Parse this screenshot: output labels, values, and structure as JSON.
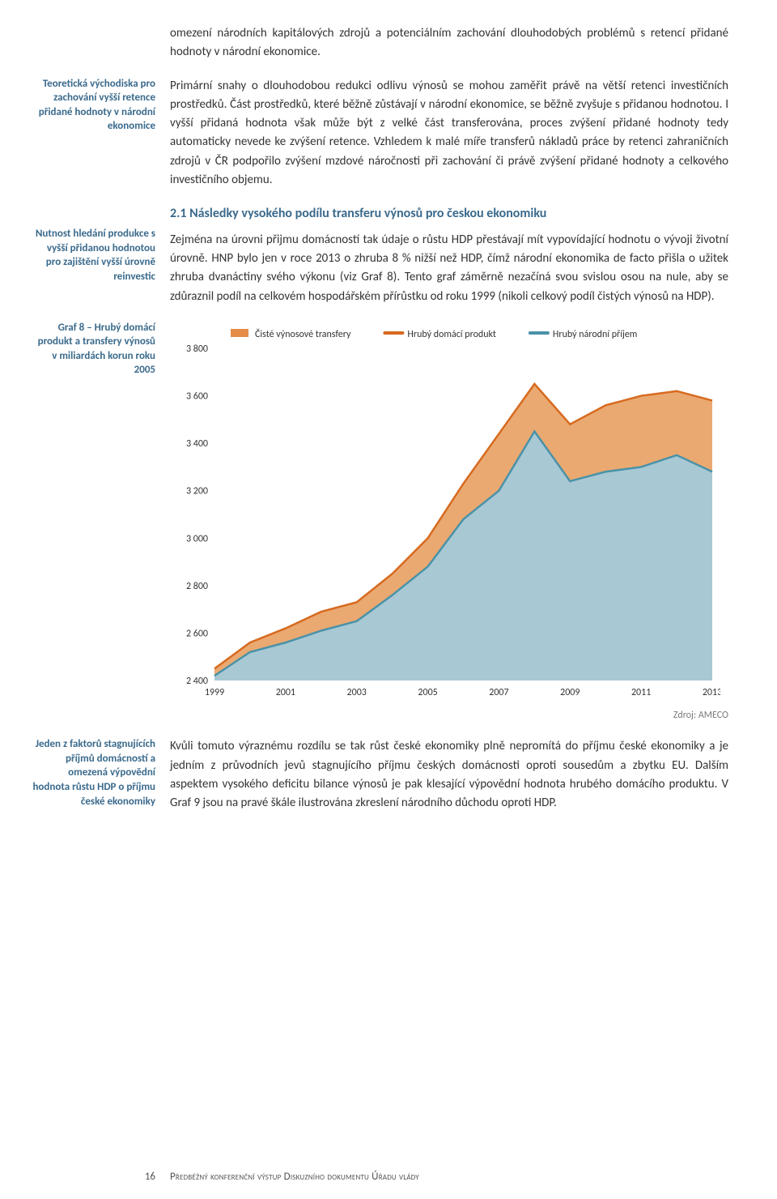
{
  "intro_para": "omezení národních kapitálových zdrojů a potenciálním zachování dlouhodobých problémů s retencí přidané hodnoty v národní ekonomice.",
  "side1": "Teoretická východiska pro zachování vyšší retence přidané hodnoty v národní ekonomice",
  "para1": "Primární snahy o dlouhodobou redukci odlivu výnosů se mohou zaměřit právě na větší retenci investičních prostředků. Část prostředků, které běžně zůstávají v národní ekonomice, se běžně zvyšuje s přidanou hodnotou. I vyšší přidaná hodnota však může být z velké část transferována, proces zvýšení přidané hodnoty tedy automaticky nevede ke zvýšení retence. Vzhledem k malé míře transferů nákladů práce by retenci zahraničních zdrojů v ČR podpořilo zvýšení mzdové náročnosti při zachování či právě zvýšení přidané hodnoty a celkového investičního objemu.",
  "side2": "Nutnost hledání produkce s vyšší přidanou hodnotou pro zajištění vyšší úrovně reinvestic",
  "sec_title": "2.1    Následky vysokého podílu transferu výnosů pro českou ekonomiku",
  "para2": "Zejména na úrovni přijmu domácností tak údaje o růstu HDP přestávají mít vypovídající hodnotu o vývoji životní úrovně. HNP bylo jen v roce 2013 o zhruba 8 % nižší než HDP, čímž národní ekonomika de facto přišla o užitek zhruba dvanáctiny svého výkonu (viz Graf 8). Tento graf záměrně nezačíná svou svislou osou na nule, aby se zdůraznil podíl na celkovém hospodářském přírůstku od roku 1999 (nikoli celkový podíl čistých výnosů na HDP).",
  "side_chart": "Graf 8 – Hrubý domácí produkt a transfery výnosů v miliardách korun roku 2005",
  "side3": "Jeden z faktorů stagnujících příjmů domácností a omezená výpovědní hodnota růstu HDP o příjmu české ekonomiky",
  "para3": "Kvůli tomuto výraznému rozdílu se tak růst české ekonomiky plně nepromítá do příjmu české ekonomiky a je jedním z průvodních jevů stagnujícího příjmu českých domácnosti oproti sousedům a zbytku EU. Dalším aspektem vysokého deficitu bilance výnosů je pak klesající výpovědní hodnota hrubého domácího produktu. V Graf 9 jsou na pravé škále ilustrována zkreslení národního důchodu oproti HDP.",
  "chart": {
    "type": "area",
    "legend": [
      {
        "label": "Čisté výnosové transfery",
        "color": "#e58c48",
        "swatch": "rect"
      },
      {
        "label": "Hrubý domácí produkt",
        "color": "#d76a1f",
        "swatch": "line"
      },
      {
        "label": "Hrubý národní příjem",
        "color": "#4a92a8",
        "swatch": "line"
      }
    ],
    "x_ticks": [
      1999,
      2001,
      2003,
      2005,
      2007,
      2009,
      2011,
      2013
    ],
    "y_ticks": [
      2400,
      2600,
      2800,
      3000,
      3200,
      3400,
      3600,
      3800
    ],
    "ylim": [
      2400,
      3800
    ],
    "xlim": [
      1999,
      2013
    ],
    "series_hdp": [
      2450,
      2560,
      2620,
      2690,
      2730,
      2850,
      3000,
      3230,
      3440,
      3650,
      3480,
      3560,
      3600,
      3620,
      3580
    ],
    "series_hnp": [
      2420,
      2520,
      2560,
      2610,
      2650,
      2760,
      2880,
      3080,
      3200,
      3450,
      3240,
      3280,
      3300,
      3350,
      3280
    ],
    "fill_between_color": "#e9a469",
    "fill_below_color": "#a8c8d4",
    "hdp_line_color": "#d76a1f",
    "hnp_line_color": "#4a92a8",
    "background_color": "#ffffff",
    "line_width": 2.5,
    "axis_fontsize": 12,
    "legend_fontsize": 12
  },
  "source": "Zdroj: AMECO",
  "footer_page": "16",
  "footer_doc": "Předběžný konferenční výstup Diskuzního dokumentu Úřadu vlády"
}
